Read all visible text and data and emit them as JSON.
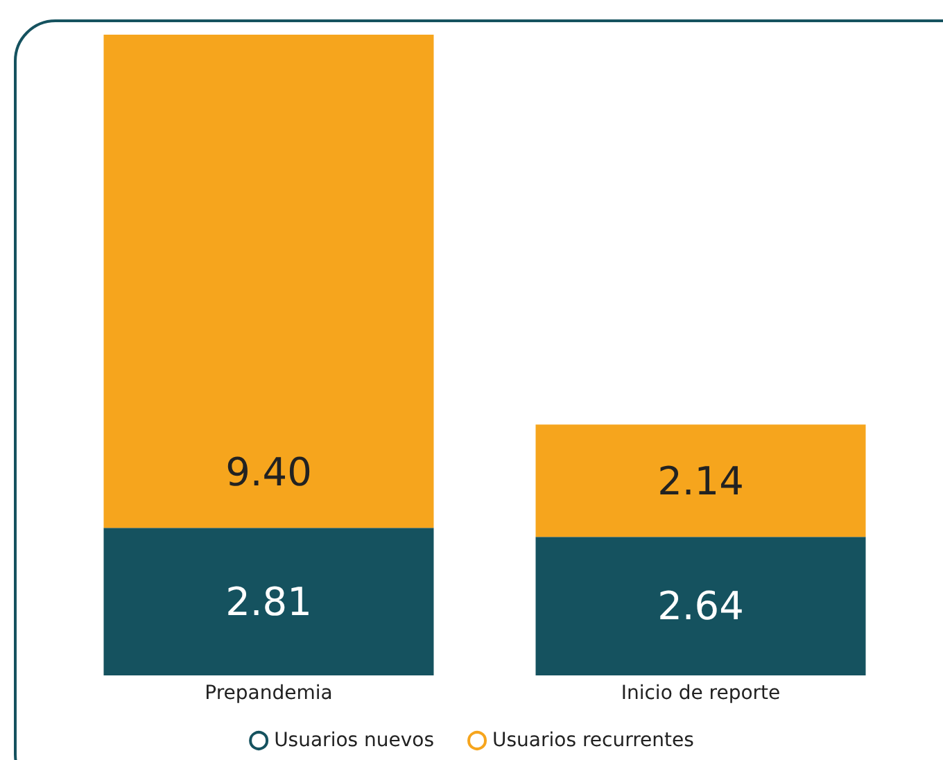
{
  "chart_data": {
    "type": "bar",
    "stacked": true,
    "legend": "bottom",
    "categories": [
      "Prepandemia",
      "Inicio de reporte"
    ],
    "series": [
      {
        "name": "Usuarios nuevos",
        "color": "#15525f",
        "values": [
          2.81,
          2.64
        ],
        "value_labels": [
          "2.81",
          "2.64"
        ]
      },
      {
        "name": "Usuarios recurrentes",
        "color": "#f6a51d",
        "values": [
          9.4,
          2.14
        ],
        "value_labels": [
          "9.40",
          "2.14"
        ]
      }
    ]
  }
}
